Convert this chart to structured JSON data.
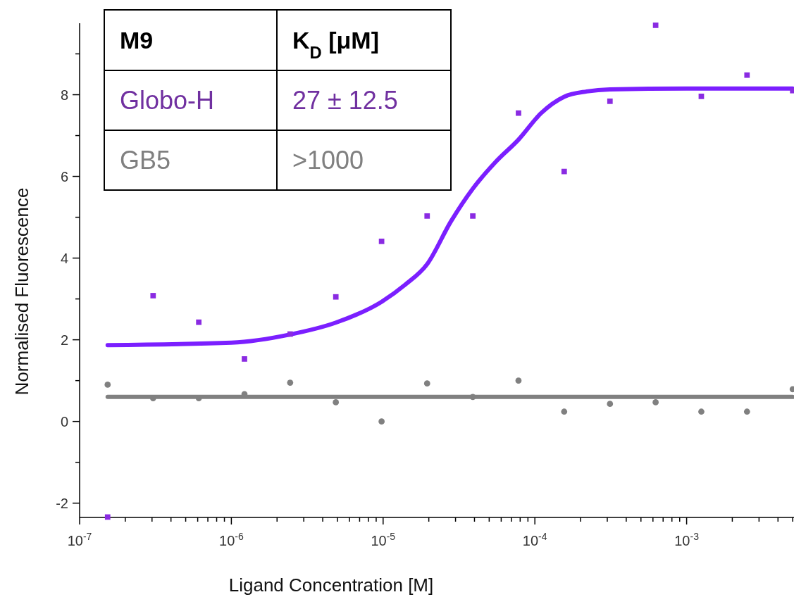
{
  "chart_data": {
    "type": "scatter",
    "xlabel": "Ligand Concentration [M]",
    "ylabel": "Normalised Fluorescence",
    "log": "x",
    "grid": false,
    "xlim": [
      1e-07,
      0.0051
    ],
    "xticks": [
      {
        "value": 1e-07,
        "label": "10$^{-7}$"
      },
      {
        "value": 2e-07,
        "label": null
      },
      {
        "value": 3e-07,
        "label": null
      },
      {
        "value": 4e-07,
        "label": null
      },
      {
        "value": 5e-07,
        "label": null
      },
      {
        "value": 6e-07,
        "label": null
      },
      {
        "value": 7e-07,
        "label": null
      },
      {
        "value": 8e-07,
        "label": null
      },
      {
        "value": 9e-07,
        "label": null
      },
      {
        "value": 1e-06,
        "label": "10$^{-6}$"
      },
      {
        "value": 2e-06,
        "label": null
      },
      {
        "value": 3e-06,
        "label": null
      },
      {
        "value": 4e-06,
        "label": null
      },
      {
        "value": 5e-06,
        "label": null
      },
      {
        "value": 6e-06,
        "label": null
      },
      {
        "value": 7e-06,
        "label": null
      },
      {
        "value": 8e-06,
        "label": null
      },
      {
        "value": 9e-06,
        "label": null
      },
      {
        "value": 1e-05,
        "label": "10$^{-5}$"
      },
      {
        "value": 2e-05,
        "label": null
      },
      {
        "value": 3e-05,
        "label": null
      },
      {
        "value": 4e-05,
        "label": null
      },
      {
        "value": 5e-05,
        "label": null
      },
      {
        "value": 6e-05,
        "label": null
      },
      {
        "value": 7e-05,
        "label": null
      },
      {
        "value": 8e-05,
        "label": null
      },
      {
        "value": 9e-05,
        "label": null
      },
      {
        "value": 0.0001,
        "label": "10$^{-4}$"
      },
      {
        "value": 0.0002,
        "label": null
      },
      {
        "value": 0.0003,
        "label": null
      },
      {
        "value": 0.0004,
        "label": null
      },
      {
        "value": 0.0005,
        "label": null
      },
      {
        "value": 0.0006,
        "label": null
      },
      {
        "value": 0.0007,
        "label": null
      },
      {
        "value": 0.0008,
        "label": null
      },
      {
        "value": 0.0009,
        "label": null
      },
      {
        "value": 0.001,
        "label": "10$^{-3}$"
      },
      {
        "value": 0.002,
        "label": null
      },
      {
        "value": 0.003,
        "label": null
      },
      {
        "value": 0.004,
        "label": null
      },
      {
        "value": 0.005,
        "label": null
      }
    ],
    "ylim": [
      -2.35,
      9.75
    ],
    "yticks": [
      -2,
      {
        "value": -1,
        "label": null
      },
      0,
      {
        "value": 1,
        "label": null
      },
      2,
      {
        "value": 3,
        "label": null
      },
      4,
      {
        "value": 5,
        "label": null
      },
      6,
      {
        "value": 7,
        "label": null
      },
      8,
      {
        "value": 9,
        "label": null
      }
    ],
    "series": [
      {
        "marker": "square",
        "color": "#8a2be2",
        "x": [
          1.53e-07,
          3.05e-07,
          6.1e-07,
          1.22e-06,
          2.44e-06,
          4.88e-06,
          9.77e-06,
          1.95e-05,
          3.9e-05,
          7.8e-05,
          0.000156,
          0.0003125,
          0.000625,
          0.00125,
          0.0025,
          0.005
        ],
        "values": [
          -2.34,
          3.08,
          2.43,
          1.53,
          2.14,
          3.05,
          4.41,
          5.03,
          5.03,
          7.55,
          6.12,
          7.84,
          9.7,
          7.96,
          8.48,
          8.1
        ]
      },
      {
        "marker": "circle",
        "color": "#808080",
        "x": [
          1.53e-07,
          3.05e-07,
          6.1e-07,
          1.22e-06,
          2.44e-06,
          4.88e-06,
          9.77e-06,
          1.95e-05,
          3.9e-05,
          7.8e-05,
          0.000156,
          0.0003125,
          0.000625,
          0.00125,
          0.0025,
          0.005
        ],
        "values": [
          0.9,
          0.57,
          0.57,
          0.67,
          0.95,
          0.47,
          0,
          0.93,
          0.6,
          1.0,
          0.24,
          0.43,
          0.47,
          0.24,
          0.24,
          0.79
        ]
      },
      {
        "type": "line",
        "marker": "none",
        "color": "#7b1fff",
        "x": [
          1.53e-07,
          1e-06,
          2.44e-06,
          4.88e-06,
          9.77e-06,
          1.4e-05,
          1.95e-05,
          2.8e-05,
          3.9e-05,
          5.5e-05,
          7.8e-05,
          0.00011,
          0.000156,
          0.00022,
          0.0003125,
          0.001,
          0.005
        ],
        "values": [
          1.87,
          1.93,
          2.13,
          2.42,
          2.93,
          3.35,
          3.85,
          4.9,
          5.7,
          6.35,
          6.9,
          7.55,
          7.95,
          8.08,
          8.13,
          8.15,
          8.15
        ]
      },
      {
        "type": "line",
        "marker": "none",
        "color": "#808080",
        "x": [
          1.53e-07,
          0.005
        ],
        "values": [
          0.6,
          0.6
        ]
      }
    ],
    "annotations": [
      "M9",
      "K$_{D}$ [μM]",
      "Globo-H",
      "27 ± 12.5",
      "GB5",
      ">1000"
    ]
  }
}
